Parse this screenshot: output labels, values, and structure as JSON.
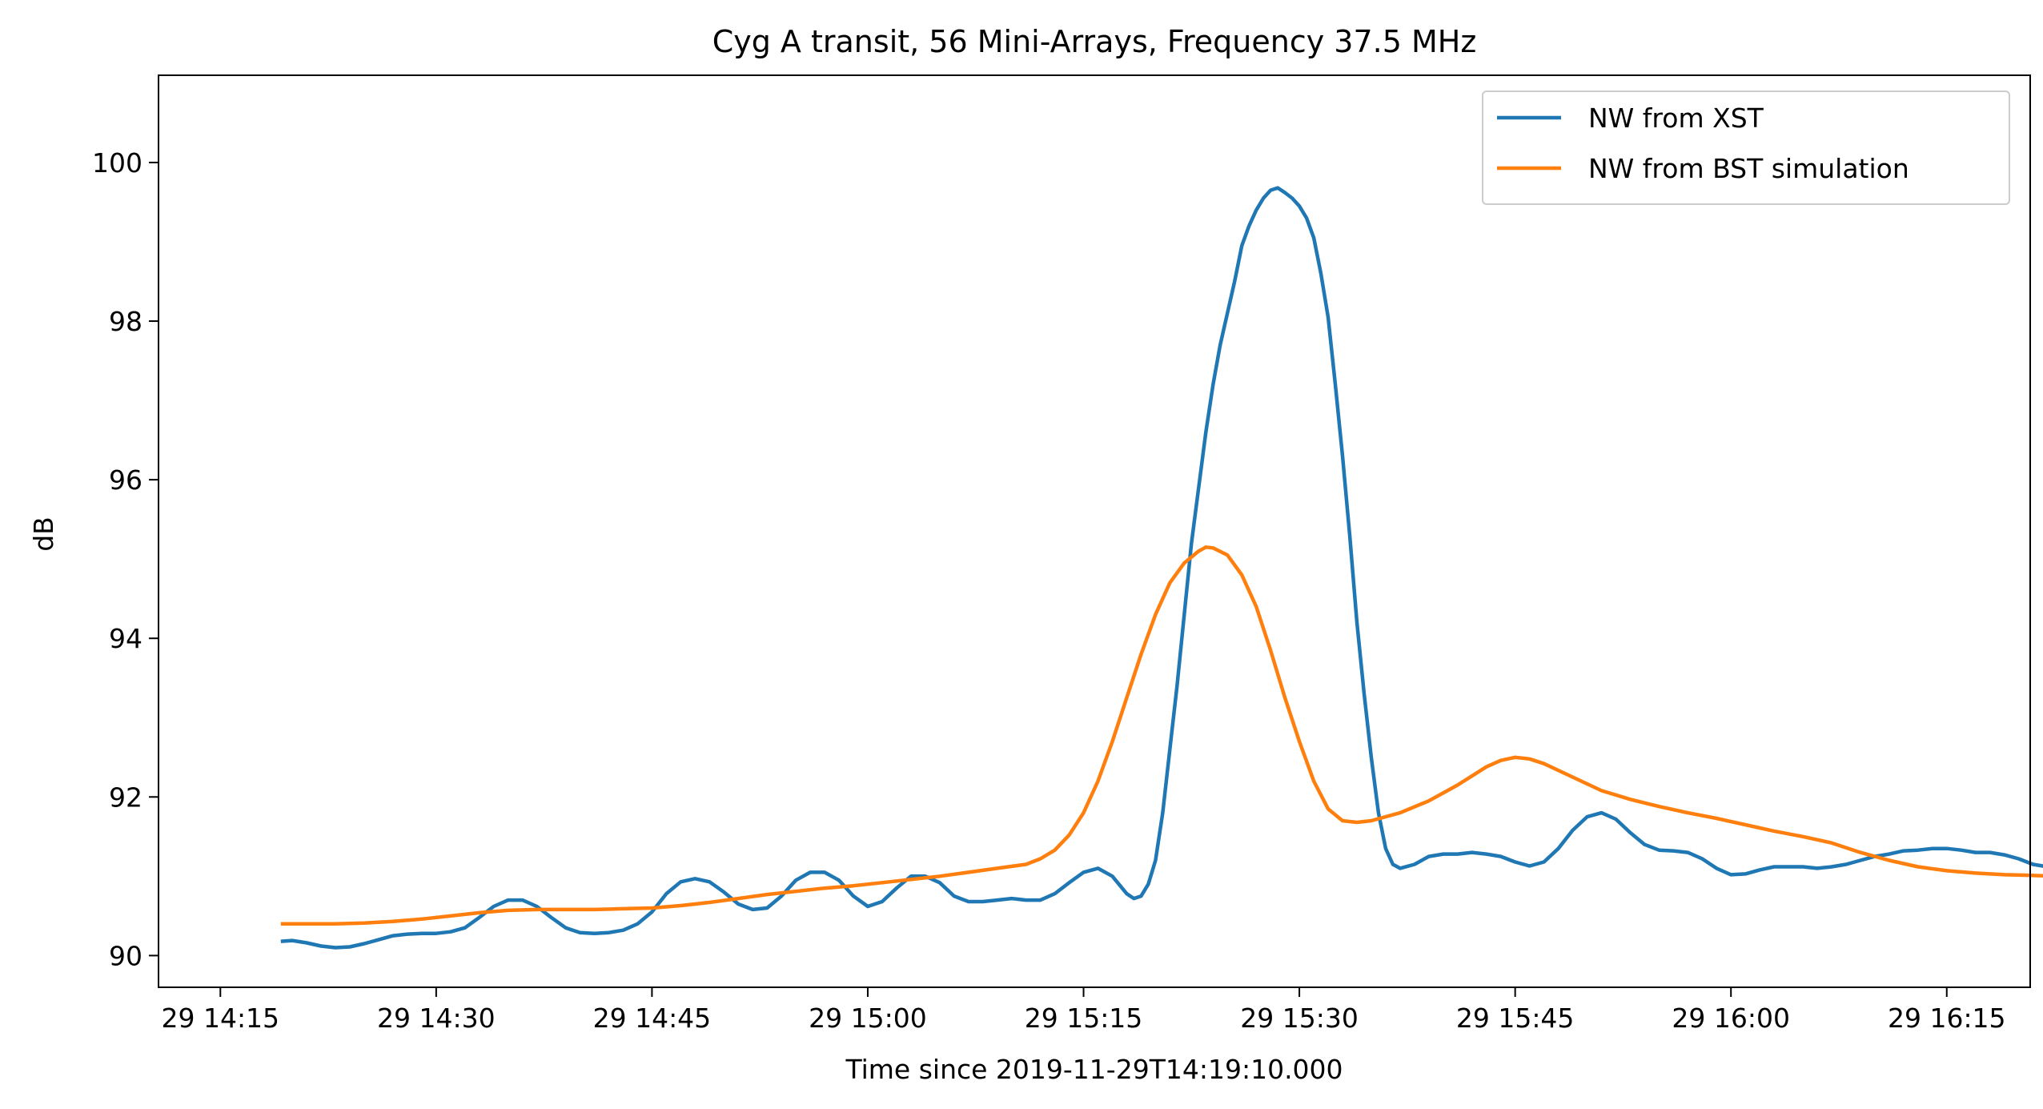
{
  "chart_data": {
    "type": "line",
    "title": "Cyg A transit, 56 Mini-Arrays, Frequency 37.5 MHz",
    "xlabel": "Time since 2019-11-29T14:19:10.000",
    "ylabel": "dB",
    "x_ticks": [
      "29 14:15",
      "29 14:30",
      "29 14:45",
      "29 15:00",
      "29 15:15",
      "29 15:30",
      "29 15:45",
      "29 16:00",
      "29 16:15"
    ],
    "x_tick_minutes": [
      0,
      15,
      30,
      45,
      60,
      75,
      90,
      105,
      120
    ],
    "y_ticks": [
      "90",
      "92",
      "94",
      "96",
      "98",
      "100"
    ],
    "y_tick_values": [
      90,
      92,
      94,
      96,
      98,
      100
    ],
    "xlim_minutes": [
      -4.3,
      125.8
    ],
    "ylim": [
      89.6,
      101.1
    ],
    "grid": false,
    "legend_position": "top-right",
    "series": [
      {
        "name": "NW from XST",
        "color": "#1f77b4",
        "points": [
          [
            4.2,
            90.18
          ],
          [
            5,
            90.19
          ],
          [
            6,
            90.16
          ],
          [
            7,
            90.12
          ],
          [
            8,
            90.1
          ],
          [
            9,
            90.11
          ],
          [
            10,
            90.15
          ],
          [
            11,
            90.2
          ],
          [
            12,
            90.25
          ],
          [
            13,
            90.27
          ],
          [
            14,
            90.28
          ],
          [
            15,
            90.28
          ],
          [
            16,
            90.3
          ],
          [
            17,
            90.35
          ],
          [
            18,
            90.48
          ],
          [
            19,
            90.62
          ],
          [
            20,
            90.7
          ],
          [
            21,
            90.7
          ],
          [
            22,
            90.62
          ],
          [
            23,
            90.48
          ],
          [
            24,
            90.35
          ],
          [
            25,
            90.29
          ],
          [
            26,
            90.28
          ],
          [
            27,
            90.29
          ],
          [
            28,
            90.32
          ],
          [
            29,
            90.4
          ],
          [
            30,
            90.55
          ],
          [
            31,
            90.78
          ],
          [
            32,
            90.93
          ],
          [
            33,
            90.97
          ],
          [
            34,
            90.93
          ],
          [
            35,
            90.8
          ],
          [
            36,
            90.65
          ],
          [
            37,
            90.58
          ],
          [
            38,
            90.6
          ],
          [
            39,
            90.75
          ],
          [
            40,
            90.95
          ],
          [
            41,
            91.05
          ],
          [
            42,
            91.05
          ],
          [
            43,
            90.95
          ],
          [
            44,
            90.75
          ],
          [
            45,
            90.62
          ],
          [
            46,
            90.68
          ],
          [
            47,
            90.85
          ],
          [
            48,
            91.0
          ],
          [
            49,
            91.0
          ],
          [
            50,
            90.92
          ],
          [
            51,
            90.75
          ],
          [
            52,
            90.68
          ],
          [
            53,
            90.68
          ],
          [
            54,
            90.7
          ],
          [
            55,
            90.72
          ],
          [
            56,
            90.7
          ],
          [
            57,
            90.7
          ],
          [
            58,
            90.78
          ],
          [
            59,
            90.92
          ],
          [
            60,
            91.05
          ],
          [
            61,
            91.1
          ],
          [
            62,
            91.0
          ],
          [
            63,
            90.78
          ],
          [
            63.5,
            90.72
          ],
          [
            64,
            90.75
          ],
          [
            64.5,
            90.9
          ],
          [
            65,
            91.2
          ],
          [
            65.5,
            91.8
          ],
          [
            66,
            92.6
          ],
          [
            66.5,
            93.4
          ],
          [
            67,
            94.3
          ],
          [
            67.5,
            95.2
          ],
          [
            68,
            95.9
          ],
          [
            68.5,
            96.6
          ],
          [
            69,
            97.2
          ],
          [
            69.5,
            97.7
          ],
          [
            70,
            98.1
          ],
          [
            70.5,
            98.5
          ],
          [
            71,
            98.95
          ],
          [
            71.5,
            99.2
          ],
          [
            72,
            99.4
          ],
          [
            72.5,
            99.55
          ],
          [
            73,
            99.65
          ],
          [
            73.5,
            99.68
          ],
          [
            74,
            99.62
          ],
          [
            74.5,
            99.55
          ],
          [
            75,
            99.45
          ],
          [
            75.5,
            99.3
          ],
          [
            76,
            99.05
          ],
          [
            76.5,
            98.6
          ],
          [
            77,
            98.05
          ],
          [
            77.5,
            97.2
          ],
          [
            78,
            96.3
          ],
          [
            78.5,
            95.3
          ],
          [
            79,
            94.2
          ],
          [
            79.5,
            93.3
          ],
          [
            80,
            92.5
          ],
          [
            80.5,
            91.8
          ],
          [
            81,
            91.35
          ],
          [
            81.5,
            91.15
          ],
          [
            82,
            91.1
          ],
          [
            83,
            91.15
          ],
          [
            84,
            91.25
          ],
          [
            85,
            91.28
          ],
          [
            86,
            91.28
          ],
          [
            87,
            91.3
          ],
          [
            88,
            91.28
          ],
          [
            89,
            91.25
          ],
          [
            90,
            91.18
          ],
          [
            91,
            91.13
          ],
          [
            92,
            91.18
          ],
          [
            93,
            91.35
          ],
          [
            94,
            91.58
          ],
          [
            95,
            91.75
          ],
          [
            96,
            91.8
          ],
          [
            97,
            91.72
          ],
          [
            98,
            91.55
          ],
          [
            99,
            91.4
          ],
          [
            100,
            91.33
          ],
          [
            101,
            91.32
          ],
          [
            102,
            91.3
          ],
          [
            103,
            91.22
          ],
          [
            104,
            91.1
          ],
          [
            105,
            91.02
          ],
          [
            106,
            91.03
          ],
          [
            107,
            91.08
          ],
          [
            108,
            91.12
          ],
          [
            109,
            91.12
          ],
          [
            110,
            91.12
          ],
          [
            111,
            91.1
          ],
          [
            112,
            91.12
          ],
          [
            113,
            91.15
          ],
          [
            114,
            91.2
          ],
          [
            115,
            91.25
          ],
          [
            116,
            91.28
          ],
          [
            117,
            91.32
          ],
          [
            118,
            91.33
          ],
          [
            119,
            91.35
          ],
          [
            120,
            91.35
          ],
          [
            121,
            91.33
          ],
          [
            122,
            91.3
          ],
          [
            123,
            91.3
          ],
          [
            124,
            91.27
          ],
          [
            125,
            91.22
          ],
          [
            126,
            91.15
          ],
          [
            127,
            91.12
          ],
          [
            128,
            91.13
          ],
          [
            129,
            91.17
          ],
          [
            130,
            91.18
          ],
          [
            131,
            91.18
          ],
          [
            132,
            91.17
          ],
          [
            132.3,
            91.18
          ]
        ]
      },
      {
        "name": "NW from BST simulation",
        "color": "#ff7f0e",
        "points": [
          [
            4.2,
            90.4
          ],
          [
            6,
            90.4
          ],
          [
            8,
            90.4
          ],
          [
            10,
            90.41
          ],
          [
            12,
            90.43
          ],
          [
            14,
            90.46
          ],
          [
            16,
            90.5
          ],
          [
            18,
            90.54
          ],
          [
            20,
            90.57
          ],
          [
            22,
            90.58
          ],
          [
            24,
            90.58
          ],
          [
            26,
            90.58
          ],
          [
            28,
            90.59
          ],
          [
            30,
            90.6
          ],
          [
            32,
            90.63
          ],
          [
            34,
            90.67
          ],
          [
            36,
            90.72
          ],
          [
            38,
            90.77
          ],
          [
            40,
            90.81
          ],
          [
            42,
            90.85
          ],
          [
            44,
            90.88
          ],
          [
            46,
            90.92
          ],
          [
            48,
            90.96
          ],
          [
            50,
            91.0
          ],
          [
            52,
            91.05
          ],
          [
            54,
            91.1
          ],
          [
            56,
            91.15
          ],
          [
            57,
            91.22
          ],
          [
            58,
            91.33
          ],
          [
            59,
            91.52
          ],
          [
            60,
            91.8
          ],
          [
            61,
            92.2
          ],
          [
            62,
            92.7
          ],
          [
            63,
            93.25
          ],
          [
            64,
            93.8
          ],
          [
            65,
            94.3
          ],
          [
            66,
            94.7
          ],
          [
            67,
            94.95
          ],
          [
            68,
            95.1
          ],
          [
            68.5,
            95.15
          ],
          [
            69,
            95.14
          ],
          [
            70,
            95.05
          ],
          [
            71,
            94.8
          ],
          [
            72,
            94.4
          ],
          [
            73,
            93.85
          ],
          [
            74,
            93.25
          ],
          [
            75,
            92.7
          ],
          [
            76,
            92.2
          ],
          [
            77,
            91.85
          ],
          [
            78,
            91.7
          ],
          [
            79,
            91.68
          ],
          [
            80,
            91.7
          ],
          [
            82,
            91.8
          ],
          [
            84,
            91.95
          ],
          [
            86,
            92.15
          ],
          [
            88,
            92.38
          ],
          [
            89,
            92.46
          ],
          [
            90,
            92.5
          ],
          [
            91,
            92.48
          ],
          [
            92,
            92.42
          ],
          [
            94,
            92.25
          ],
          [
            96,
            92.08
          ],
          [
            98,
            91.97
          ],
          [
            100,
            91.88
          ],
          [
            102,
            91.8
          ],
          [
            104,
            91.73
          ],
          [
            106,
            91.65
          ],
          [
            108,
            91.57
          ],
          [
            110,
            91.5
          ],
          [
            112,
            91.42
          ],
          [
            114,
            91.3
          ],
          [
            116,
            91.2
          ],
          [
            118,
            91.12
          ],
          [
            120,
            91.07
          ],
          [
            122,
            91.04
          ],
          [
            124,
            91.02
          ],
          [
            126,
            91.01
          ],
          [
            127.5,
            91.0
          ]
        ]
      }
    ]
  }
}
